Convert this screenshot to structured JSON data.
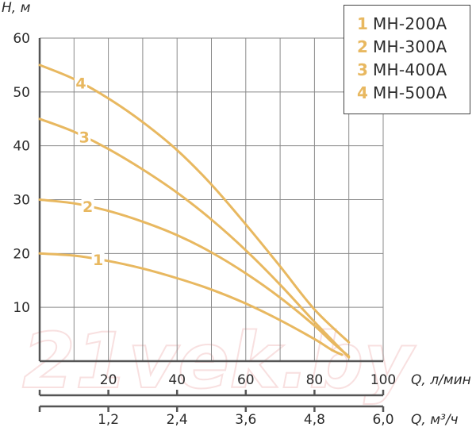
{
  "chart_data": {
    "type": "line",
    "ylabel": "H, м",
    "xlabel": "Q, л/мин",
    "x2label": "Q, м³/ч",
    "ylim": [
      0,
      60
    ],
    "xlim": [
      0,
      100
    ],
    "yticks": [
      "60",
      "50",
      "40",
      "30",
      "20",
      "10"
    ],
    "xticks": [
      "20",
      "40",
      "60",
      "80",
      "100"
    ],
    "x2ticks": [
      "1,2",
      "2,4",
      "3,6",
      "4,8",
      "6,0"
    ],
    "series": [
      {
        "id": "1",
        "name": "MH-200A",
        "color": "#e8b860",
        "points": [
          [
            0,
            20
          ],
          [
            10,
            19.6
          ],
          [
            20,
            18.6
          ],
          [
            30,
            17.2
          ],
          [
            40,
            15.4
          ],
          [
            50,
            13.3
          ],
          [
            60,
            10.7
          ],
          [
            70,
            7.6
          ],
          [
            80,
            4.1
          ],
          [
            85,
            2.1
          ],
          [
            88,
            1.2
          ]
        ]
      },
      {
        "id": "2",
        "name": "MH-300A",
        "color": "#e8b860",
        "points": [
          [
            0,
            30
          ],
          [
            10,
            29.3
          ],
          [
            20,
            27.9
          ],
          [
            30,
            25.9
          ],
          [
            40,
            23.4
          ],
          [
            50,
            20.2
          ],
          [
            60,
            16.3
          ],
          [
            70,
            11.8
          ],
          [
            80,
            6.6
          ],
          [
            85,
            3.6
          ],
          [
            90,
            0.9
          ]
        ]
      },
      {
        "id": "3",
        "name": "MH-400A",
        "color": "#e8b860",
        "points": [
          [
            0,
            45
          ],
          [
            10,
            42.6
          ],
          [
            20,
            39.4
          ],
          [
            30,
            35.6
          ],
          [
            40,
            31.3
          ],
          [
            50,
            26.3
          ],
          [
            60,
            20.6
          ],
          [
            70,
            14.2
          ],
          [
            80,
            7.3
          ],
          [
            90,
            0.7
          ]
        ]
      },
      {
        "id": "4",
        "name": "MH-500A",
        "color": "#e8b860",
        "points": [
          [
            0,
            55
          ],
          [
            10,
            52.4
          ],
          [
            20,
            48.8
          ],
          [
            30,
            44.4
          ],
          [
            40,
            39.2
          ],
          [
            50,
            32.8
          ],
          [
            60,
            25.4
          ],
          [
            70,
            17.6
          ],
          [
            80,
            9.6
          ],
          [
            90,
            3.5
          ]
        ]
      }
    ]
  },
  "legend": {
    "items": [
      {
        "num": "1",
        "label": "MH-200A"
      },
      {
        "num": "2",
        "label": "MH-300A"
      },
      {
        "num": "3",
        "label": "MH-400A"
      },
      {
        "num": "4",
        "label": "MH-500A"
      }
    ]
  },
  "watermark": "21vek.by"
}
